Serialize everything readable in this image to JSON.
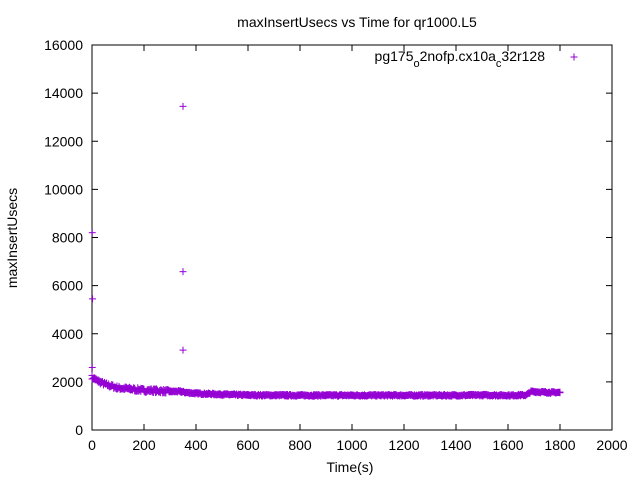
{
  "chart_data": {
    "type": "scatter",
    "title": "maxInsertUsecs vs Time for qr1000.L5",
    "xlabel": "Time(s)",
    "ylabel": "maxInsertUsecs",
    "xlim": [
      0,
      2000
    ],
    "ylim": [
      0,
      16000
    ],
    "x_ticks": [
      0,
      200,
      400,
      600,
      800,
      1000,
      1200,
      1400,
      1600,
      1800,
      2000
    ],
    "y_ticks": [
      0,
      2000,
      4000,
      6000,
      8000,
      10000,
      12000,
      14000,
      16000
    ],
    "grid": false,
    "legend_position": "top-right",
    "series": [
      {
        "name_parts": [
          "pg175",
          "o",
          "2nofp.cx10a",
          "c",
          "32r128"
        ],
        "color": "#9400d3",
        "marker": "plus",
        "outliers": [
          [
            1,
            8200
          ],
          [
            2,
            5450
          ],
          [
            1,
            2600
          ],
          [
            350,
            13450
          ],
          [
            350,
            6580
          ],
          [
            350,
            3320
          ]
        ],
        "trend": [
          [
            0,
            2200
          ],
          [
            20,
            2050
          ],
          [
            50,
            1900
          ],
          [
            100,
            1750
          ],
          [
            150,
            1700
          ],
          [
            200,
            1650
          ],
          [
            250,
            1630
          ],
          [
            300,
            1600
          ],
          [
            340,
            1600
          ],
          [
            360,
            1560
          ],
          [
            400,
            1520
          ],
          [
            500,
            1480
          ],
          [
            600,
            1450
          ],
          [
            800,
            1440
          ],
          [
            1000,
            1440
          ],
          [
            1200,
            1440
          ],
          [
            1400,
            1440
          ],
          [
            1500,
            1450
          ],
          [
            1600,
            1440
          ],
          [
            1670,
            1450
          ],
          [
            1690,
            1600
          ],
          [
            1720,
            1580
          ],
          [
            1760,
            1560
          ],
          [
            1800,
            1560
          ]
        ]
      }
    ]
  }
}
